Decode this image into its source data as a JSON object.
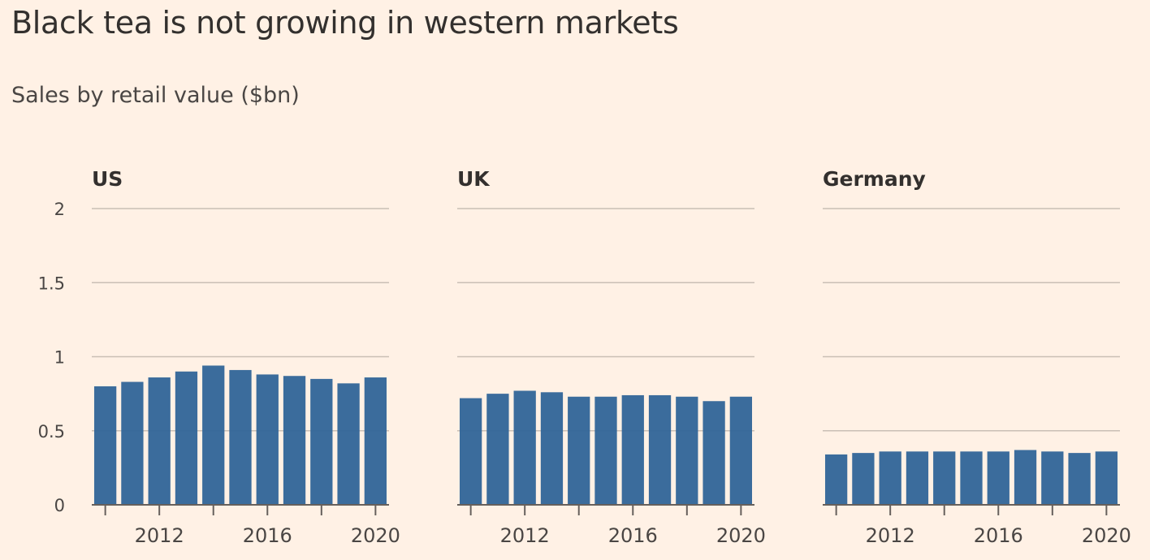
{
  "title": "Black tea is not growing in western markets",
  "subtitle": "Sales by retail value ($bn)",
  "colors": {
    "background": "#fff1e5",
    "bar": "#336699",
    "text": "#33302e",
    "grid": "#c9bfb5"
  },
  "chart_data": {
    "type": "bar",
    "ylim": [
      0,
      2
    ],
    "yticks": [
      0,
      0.5,
      1,
      1.5,
      2
    ],
    "ytick_labels": [
      "0",
      "0.5",
      "1",
      "1.5",
      "2"
    ],
    "x": [
      2010,
      2011,
      2012,
      2013,
      2014,
      2015,
      2016,
      2017,
      2018,
      2019,
      2020
    ],
    "xtick_labels": [
      "2012",
      "2016",
      "2020"
    ],
    "grid": true,
    "panels": [
      {
        "name": "US",
        "values": [
          0.8,
          0.83,
          0.86,
          0.9,
          0.94,
          0.91,
          0.88,
          0.87,
          0.85,
          0.82,
          0.86
        ]
      },
      {
        "name": "UK",
        "values": [
          0.72,
          0.75,
          0.77,
          0.76,
          0.73,
          0.73,
          0.74,
          0.74,
          0.73,
          0.7,
          0.73
        ]
      },
      {
        "name": "Germany",
        "values": [
          0.34,
          0.35,
          0.36,
          0.36,
          0.36,
          0.36,
          0.36,
          0.37,
          0.36,
          0.35,
          0.36
        ]
      }
    ]
  }
}
